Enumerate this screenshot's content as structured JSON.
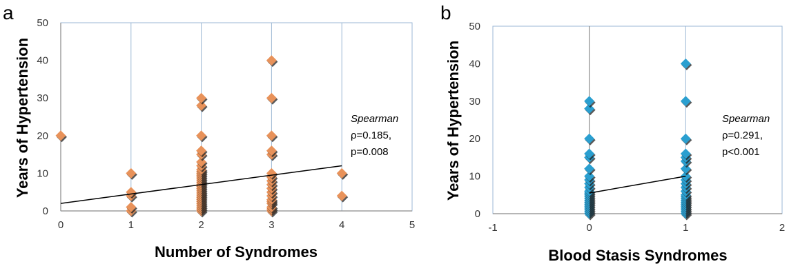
{
  "chart_data": [
    {
      "type": "scatter",
      "panel": "a",
      "xlabel": "Number of Syndromes",
      "ylabel": "Years of Hypertension",
      "xlim": [
        0,
        5
      ],
      "ylim": [
        0,
        50
      ],
      "x_ticks": [
        "0",
        "1",
        "2",
        "3",
        "4",
        "5"
      ],
      "y_ticks": [
        "0",
        "10",
        "20",
        "30",
        "40",
        "50"
      ],
      "marker_color": "#e8925a",
      "points": [
        [
          0,
          20
        ],
        [
          1,
          0
        ],
        [
          1,
          1
        ],
        [
          1,
          4
        ],
        [
          1,
          5
        ],
        [
          1,
          10
        ],
        [
          2,
          0
        ],
        [
          2,
          0.5
        ],
        [
          2,
          1
        ],
        [
          2,
          1.5
        ],
        [
          2,
          2
        ],
        [
          2,
          2.5
        ],
        [
          2,
          3
        ],
        [
          2,
          3.5
        ],
        [
          2,
          4
        ],
        [
          2,
          4.5
        ],
        [
          2,
          5
        ],
        [
          2,
          5.5
        ],
        [
          2,
          6
        ],
        [
          2,
          6.5
        ],
        [
          2,
          7
        ],
        [
          2,
          7.5
        ],
        [
          2,
          8
        ],
        [
          2,
          8.5
        ],
        [
          2,
          9
        ],
        [
          2,
          9.5
        ],
        [
          2,
          10
        ],
        [
          2,
          10.5
        ],
        [
          2,
          11
        ],
        [
          2,
          12
        ],
        [
          2,
          13
        ],
        [
          2,
          15
        ],
        [
          2,
          16
        ],
        [
          2,
          20
        ],
        [
          2,
          28
        ],
        [
          2,
          30
        ],
        [
          3,
          0
        ],
        [
          3,
          0.5
        ],
        [
          3,
          1
        ],
        [
          3,
          2
        ],
        [
          3,
          2.5
        ],
        [
          3,
          3
        ],
        [
          3,
          4
        ],
        [
          3,
          5
        ],
        [
          3,
          6
        ],
        [
          3,
          7
        ],
        [
          3,
          8
        ],
        [
          3,
          9
        ],
        [
          3,
          10
        ],
        [
          3,
          15
        ],
        [
          3,
          16
        ],
        [
          3,
          20
        ],
        [
          3,
          30
        ],
        [
          3,
          40
        ],
        [
          4,
          4
        ],
        [
          4,
          10
        ]
      ],
      "trendline": {
        "x": [
          0,
          4
        ],
        "y": [
          2,
          12
        ]
      },
      "annotation": {
        "method": "Spearman",
        "rho": "ρ=0.185,",
        "p": "p=0.008"
      }
    },
    {
      "type": "scatter",
      "panel": "b",
      "xlabel": "Blood Stasis Syndromes",
      "ylabel": "Years of Hypertension",
      "xlim": [
        -1,
        2
      ],
      "ylim": [
        0,
        50
      ],
      "x_ticks": [
        "-1",
        "0",
        "1",
        "2"
      ],
      "y_ticks": [
        "0",
        "10",
        "20",
        "30",
        "40",
        "50"
      ],
      "marker_color": "#2a9fd0",
      "points": [
        [
          0,
          0
        ],
        [
          0,
          0.5
        ],
        [
          0,
          1
        ],
        [
          0,
          1.5
        ],
        [
          0,
          2
        ],
        [
          0,
          2.5
        ],
        [
          0,
          3
        ],
        [
          0,
          3.5
        ],
        [
          0,
          4
        ],
        [
          0,
          4.5
        ],
        [
          0,
          5
        ],
        [
          0,
          5.5
        ],
        [
          0,
          6
        ],
        [
          0,
          7
        ],
        [
          0,
          8
        ],
        [
          0,
          9
        ],
        [
          0,
          10
        ],
        [
          0,
          12
        ],
        [
          0,
          15
        ],
        [
          0,
          16
        ],
        [
          0,
          20
        ],
        [
          0,
          28
        ],
        [
          0,
          30
        ],
        [
          1,
          0
        ],
        [
          1,
          0.5
        ],
        [
          1,
          1
        ],
        [
          1,
          1.5
        ],
        [
          1,
          2
        ],
        [
          1,
          2.5
        ],
        [
          1,
          3
        ],
        [
          1,
          3.5
        ],
        [
          1,
          4
        ],
        [
          1,
          4.5
        ],
        [
          1,
          5
        ],
        [
          1,
          6
        ],
        [
          1,
          7
        ],
        [
          1,
          8
        ],
        [
          1,
          9
        ],
        [
          1,
          10
        ],
        [
          1,
          12
        ],
        [
          1,
          14
        ],
        [
          1,
          15
        ],
        [
          1,
          16
        ],
        [
          1,
          20
        ],
        [
          1,
          30
        ],
        [
          1,
          40
        ]
      ],
      "trendline": {
        "x": [
          0,
          1
        ],
        "y": [
          5.5,
          10
        ]
      },
      "annotation": {
        "method": "Spearman",
        "rho": "ρ=0.291,",
        "p": "p<0.001"
      }
    }
  ]
}
